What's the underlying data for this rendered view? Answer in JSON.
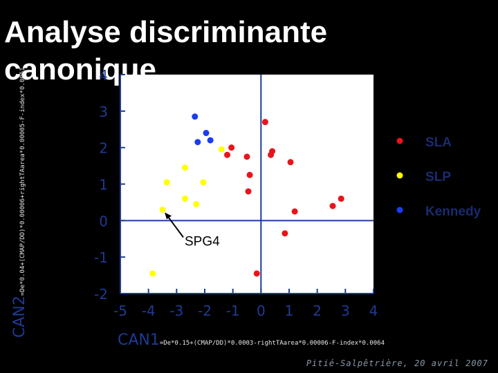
{
  "slide": {
    "title": "Analyse discriminante canonique",
    "footer": "Pitié-Salpêtrière, 20 avril 2007"
  },
  "chart_data": {
    "type": "scatter",
    "xlabel": "CAN1",
    "xlabel_formula": "=De*0.15+(CMAP/DD)*0.0003-rightTAarea*0.00006-F-index*0.0064",
    "ylabel": "CAN2",
    "ylabel_formula": "=De*0.04+(CMAP/DD)*0.00006+rightTAarea*0.00005-F-index*0.0061",
    "xlim": [
      -5,
      4
    ],
    "ylim": [
      -2,
      4
    ],
    "xticks": [
      -5,
      -4,
      -3,
      -2,
      -1,
      0,
      1,
      2,
      3,
      4
    ],
    "yticks": [
      -2,
      -1,
      0,
      1,
      2,
      3,
      4
    ],
    "reference_lines": {
      "x": 0,
      "y": 0
    },
    "legend_position": "right",
    "annotation": {
      "text": "SPG4",
      "x": -3.5,
      "y": 0.3
    },
    "series": [
      {
        "name": "SLA",
        "color": "#e8141b",
        "points": [
          [
            0.15,
            2.7
          ],
          [
            -1.05,
            2.0
          ],
          [
            -1.2,
            1.8
          ],
          [
            -0.5,
            1.75
          ],
          [
            0.4,
            1.9
          ],
          [
            0.35,
            1.8
          ],
          [
            1.05,
            1.6
          ],
          [
            -0.4,
            1.25
          ],
          [
            -0.45,
            0.8
          ],
          [
            1.2,
            0.25
          ],
          [
            0.85,
            -0.35
          ],
          [
            2.55,
            0.4
          ],
          [
            2.85,
            0.6
          ],
          [
            -0.15,
            -1.45
          ]
        ]
      },
      {
        "name": "SLP",
        "color": "#ffff00",
        "points": [
          [
            -1.4,
            1.95
          ],
          [
            -2.7,
            1.45
          ],
          [
            -3.35,
            1.05
          ],
          [
            -2.05,
            1.05
          ],
          [
            -2.7,
            0.6
          ],
          [
            -2.3,
            0.45
          ],
          [
            -3.5,
            0.3
          ],
          [
            -3.85,
            -1.45
          ]
        ]
      },
      {
        "name": "Kennedy",
        "color": "#1a3df0",
        "points": [
          [
            -2.35,
            2.85
          ],
          [
            -1.95,
            2.4
          ],
          [
            -1.8,
            2.2
          ],
          [
            -2.25,
            2.15
          ]
        ]
      }
    ]
  }
}
